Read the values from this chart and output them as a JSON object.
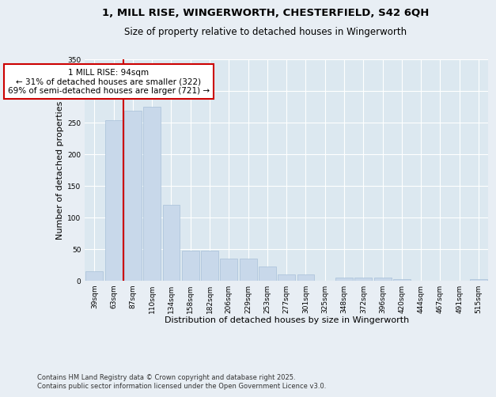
{
  "title_line1": "1, MILL RISE, WINGERWORTH, CHESTERFIELD, S42 6QH",
  "title_line2": "Size of property relative to detached houses in Wingerworth",
  "xlabel": "Distribution of detached houses by size in Wingerworth",
  "ylabel": "Number of detached properties",
  "categories": [
    "39sqm",
    "63sqm",
    "87sqm",
    "110sqm",
    "134sqm",
    "158sqm",
    "182sqm",
    "206sqm",
    "229sqm",
    "253sqm",
    "277sqm",
    "301sqm",
    "325sqm",
    "348sqm",
    "372sqm",
    "396sqm",
    "420sqm",
    "444sqm",
    "467sqm",
    "491sqm",
    "515sqm"
  ],
  "values": [
    15,
    253,
    268,
    275,
    120,
    47,
    47,
    35,
    35,
    22,
    9,
    9,
    0,
    4,
    5,
    4,
    2,
    0,
    0,
    0,
    2
  ],
  "bar_color": "#c8d8ea",
  "bar_edge_color": "#a8c0d8",
  "vline_x_index": 2,
  "vline_color": "#cc0000",
  "annotation_text": "1 MILL RISE: 94sqm\n← 31% of detached houses are smaller (322)\n69% of semi-detached houses are larger (721) →",
  "annotation_box_color": "#ffffff",
  "annotation_box_edge": "#cc0000",
  "ylim": [
    0,
    350
  ],
  "yticks": [
    0,
    50,
    100,
    150,
    200,
    250,
    300,
    350
  ],
  "fig_bg_color": "#e8eef4",
  "plot_bg_color": "#dce8f0",
  "footer_text": "Contains HM Land Registry data © Crown copyright and database right 2025.\nContains public sector information licensed under the Open Government Licence v3.0.",
  "title_fontsize": 9.5,
  "subtitle_fontsize": 8.5,
  "xlabel_fontsize": 8,
  "ylabel_fontsize": 8,
  "tick_fontsize": 6.5,
  "annotation_fontsize": 7.5,
  "footer_fontsize": 6
}
